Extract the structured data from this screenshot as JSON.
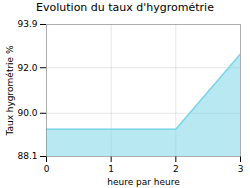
{
  "chart_data": {
    "type": "area",
    "title": "Evolution du taux d'hygrométrie",
    "xlabel": "heure par heure",
    "ylabel": "Taux hygrométrie %",
    "x": [
      0,
      2,
      3
    ],
    "values": [
      89.3,
      89.3,
      92.6
    ],
    "color": "#7dd6e8",
    "xlim": [
      0,
      3
    ],
    "ylim": [
      88.1,
      93.9
    ],
    "xticks": [
      0,
      1,
      2,
      3
    ],
    "yticks": [
      88.1,
      {
        "value": 90.0,
        "label": "90.0"
      },
      {
        "value": 92.0,
        "label": "92.0"
      },
      93.9
    ],
    "grid": true
  }
}
